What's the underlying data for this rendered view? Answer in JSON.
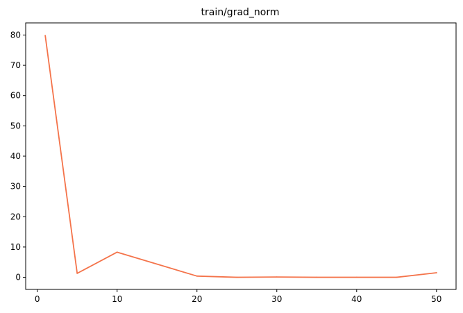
{
  "chart_data": {
    "type": "line",
    "title": "train/grad_norm",
    "xlabel": "",
    "ylabel": "",
    "xlim": [
      -1.45,
      52.45
    ],
    "ylim": [
      -4.0,
      84.0
    ],
    "x_ticks": [
      0,
      10,
      20,
      30,
      40,
      50
    ],
    "y_ticks": [
      0,
      10,
      20,
      30,
      40,
      50,
      60,
      70,
      80
    ],
    "grid": false,
    "series": [
      {
        "color": "#f4734a",
        "x": [
          1,
          5,
          10,
          20,
          25,
          30,
          35,
          40,
          45,
          50
        ],
        "y": [
          79.8,
          1.3,
          8.3,
          0.4,
          0.0,
          0.1,
          0.0,
          0.0,
          0.0,
          1.5
        ]
      }
    ]
  }
}
